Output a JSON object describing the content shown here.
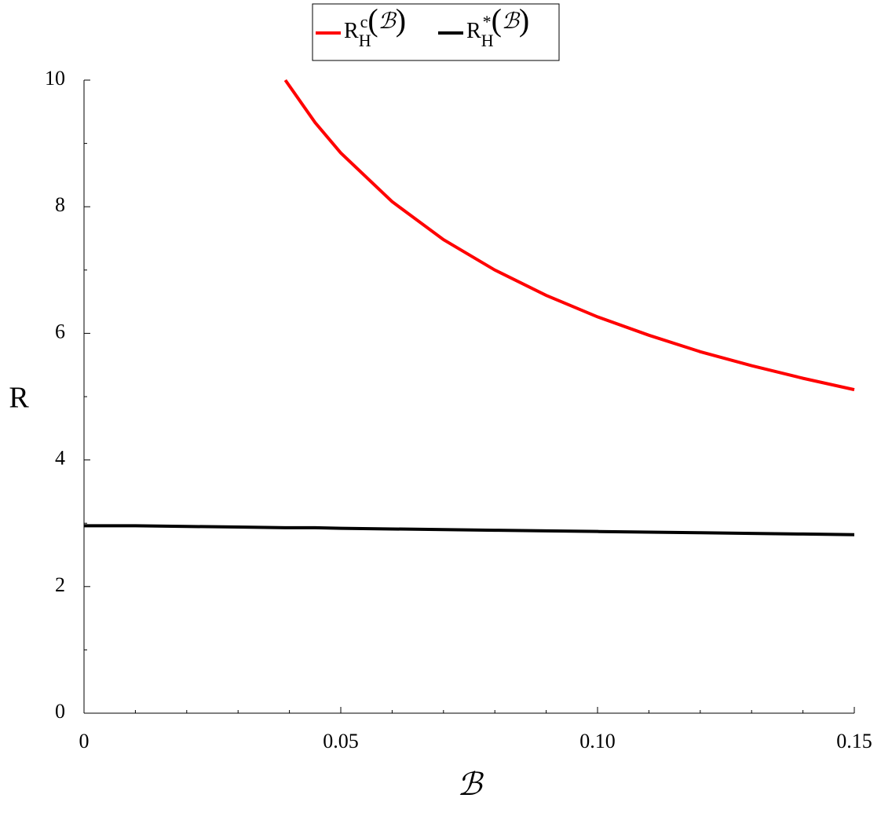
{
  "chart_data": {
    "type": "line",
    "xlabel": "ℬ",
    "ylabel": "R",
    "xlim": [
      0,
      0.15
    ],
    "ylim": [
      0,
      10
    ],
    "xticks": [
      0,
      0.05,
      {
        "value": 0.1,
        "label": "0.10"
      },
      0.15
    ],
    "yticks": [
      0,
      2,
      4,
      6,
      8,
      10
    ],
    "xminor_ticks": [
      0.01,
      0.02,
      0.03,
      0.04,
      0.06,
      0.07,
      0.08,
      0.09,
      0.11,
      0.12,
      0.13,
      0.14
    ],
    "yminor_ticks": [
      1,
      3,
      5,
      7,
      9
    ],
    "legend": "top",
    "x": [
      0,
      0.01,
      0.02,
      0.03,
      0.0392,
      0.045,
      0.05,
      0.06,
      0.07,
      0.08,
      0.09,
      0.1,
      0.11,
      0.12,
      0.13,
      0.14,
      0.15
    ],
    "series": [
      {
        "name": "R_H^c(ℬ)",
        "color": "#ff0000",
        "values": [
          null,
          null,
          null,
          null,
          10.0,
          9.33,
          8.85,
          8.08,
          7.48,
          7.0,
          6.6,
          6.26,
          5.97,
          5.71,
          5.49,
          5.29,
          5.11
        ]
      },
      {
        "name": "R_H^*(ℬ)",
        "color": "#000000",
        "values": [
          2.96,
          2.96,
          2.95,
          2.94,
          2.93,
          2.93,
          2.92,
          2.91,
          2.9,
          2.89,
          2.88,
          2.87,
          2.86,
          2.85,
          2.84,
          2.83,
          2.82
        ]
      }
    ]
  }
}
